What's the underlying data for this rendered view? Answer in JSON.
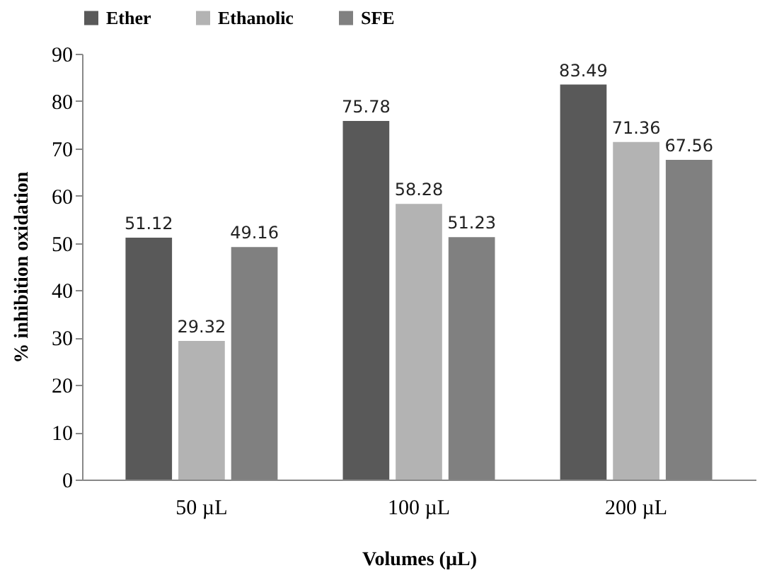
{
  "chart_data": {
    "type": "bar",
    "xlabel": "Volumes (µL)",
    "ylabel": "% inhibition  oxidation",
    "categories": [
      "50 µL",
      "100 µL",
      "200 µL"
    ],
    "series": [
      {
        "name": "Ether",
        "color": "#595959",
        "values": [
          51.12,
          75.78,
          83.49
        ]
      },
      {
        "name": "Ethanolic",
        "color": "#b3b3b3",
        "values": [
          29.32,
          58.28,
          71.36
        ]
      },
      {
        "name": "SFE",
        "color": "#808080",
        "values": [
          49.16,
          51.23,
          67.56
        ]
      }
    ],
    "ylim": [
      0,
      90
    ],
    "yticks": [
      0,
      10,
      20,
      30,
      40,
      50,
      60,
      70,
      80,
      90
    ],
    "grid": false,
    "legend": "top",
    "data_labels": true
  }
}
